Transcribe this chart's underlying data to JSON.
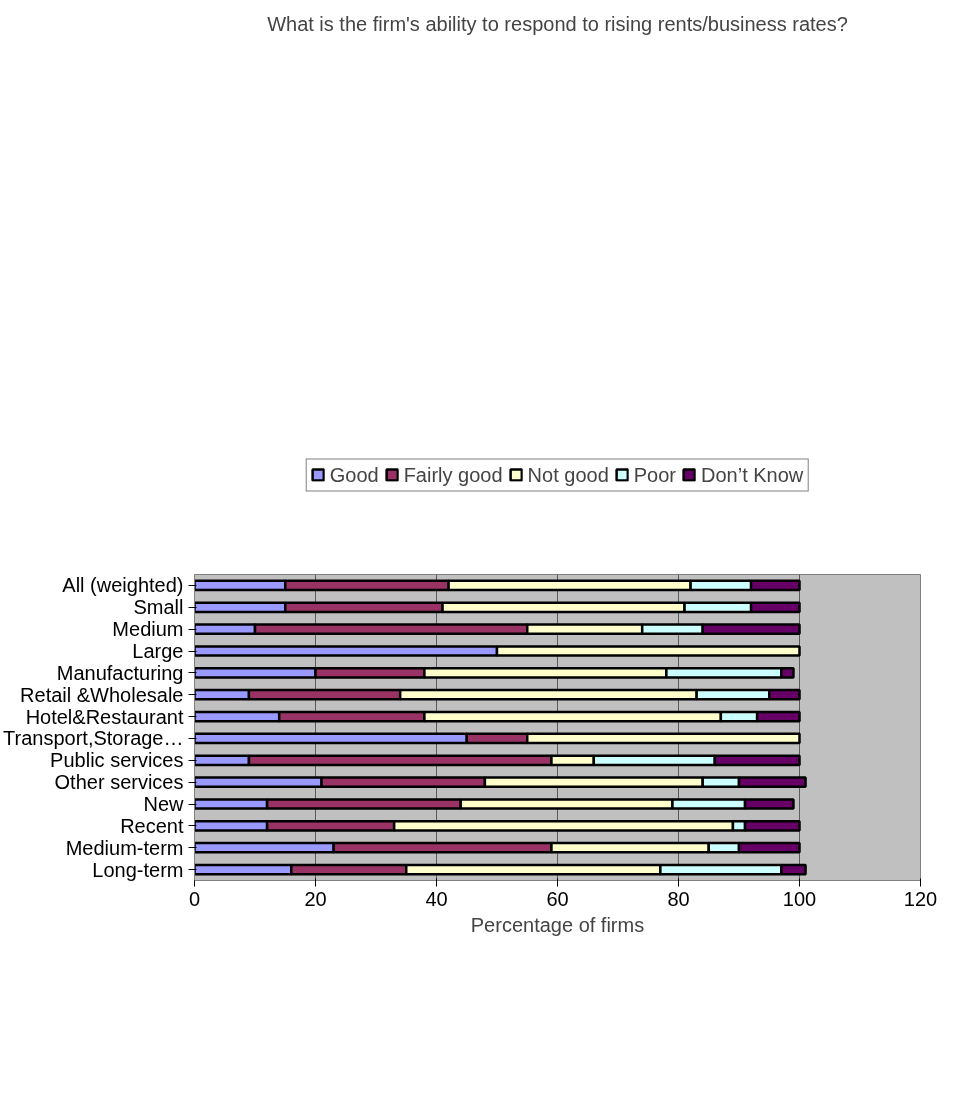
{
  "chart_data": {
    "type": "bar",
    "orientation": "horizontal",
    "stacked": true,
    "title": "What is the firm's ability to respond to rising rents/business rates?",
    "xlabel": "Percentage of firms",
    "categories": [
      "All (weighted)",
      "Small",
      "Medium",
      "Large",
      "Manufacturing",
      "Retail &Wholesale",
      "Hotel&Restaurant",
      "Transport,Storage…",
      "Public services",
      "Other services",
      "New",
      "Recent",
      "Medium-term",
      "Long-term"
    ],
    "series": [
      {
        "name": "Good",
        "color": "#9999ff",
        "values": [
          15,
          15,
          10,
          50,
          20,
          9,
          14,
          45,
          9,
          21,
          12,
          12,
          23,
          16
        ]
      },
      {
        "name": "Fairly good",
        "color": "#993366",
        "values": [
          27,
          26,
          45,
          0,
          18,
          25,
          24,
          10,
          50,
          27,
          32,
          21,
          36,
          19
        ]
      },
      {
        "name": "Not good",
        "color": "#ffffcc",
        "values": [
          40,
          40,
          19,
          50,
          40,
          49,
          49,
          45,
          7,
          36,
          35,
          56,
          26,
          42
        ]
      },
      {
        "name": "Poor",
        "color": "#ccffff",
        "values": [
          10,
          11,
          10,
          0,
          19,
          12,
          6,
          0,
          20,
          6,
          12,
          2,
          5,
          20
        ]
      },
      {
        "name": "Don’t Know",
        "color": "#660066",
        "values": [
          8,
          8,
          16,
          0,
          2,
          5,
          7,
          0,
          14,
          11,
          8,
          9,
          10,
          4
        ]
      }
    ],
    "xlim": [
      0,
      120
    ],
    "xticks": [
      0,
      20,
      40,
      60,
      80,
      100,
      120
    ],
    "grid": "x",
    "legend": "top"
  }
}
